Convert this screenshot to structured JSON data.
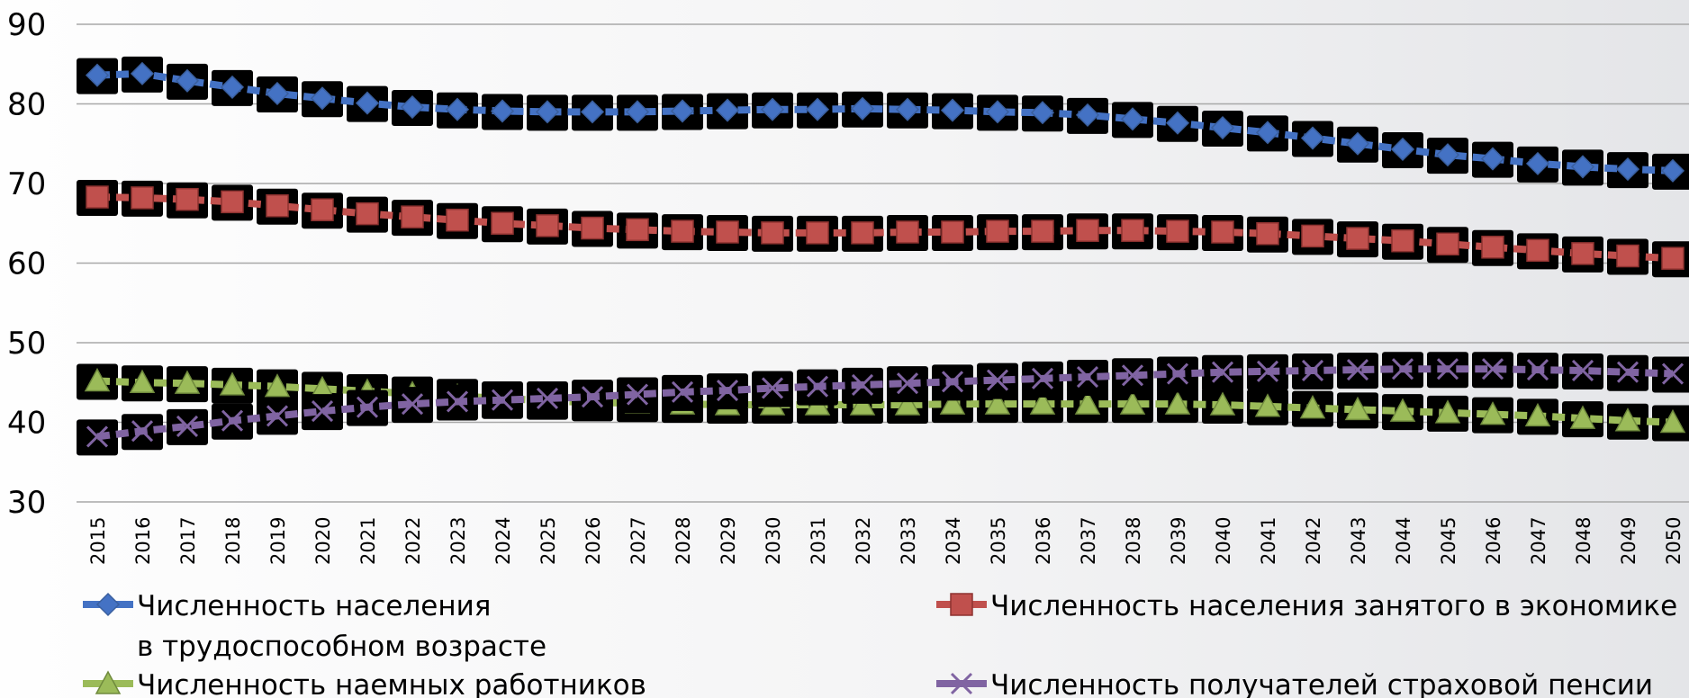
{
  "chart_data": {
    "type": "line",
    "title": "",
    "xlabel": "",
    "ylabel": "",
    "ylim": [
      30,
      90
    ],
    "yticks": [
      "30",
      "40",
      "50",
      "60",
      "70",
      "80",
      "90"
    ],
    "grid": true,
    "legend_placement": "bottom",
    "categories": [
      "2015",
      "2016",
      "2017",
      "2018",
      "2019",
      "2020",
      "2021",
      "2022",
      "2023",
      "2024",
      "2025",
      "2026",
      "2027",
      "2028",
      "2029",
      "2030",
      "2031",
      "2032",
      "2033",
      "2034",
      "2035",
      "2036",
      "2037",
      "2038",
      "2039",
      "2040",
      "2041",
      "2042",
      "2043",
      "2044",
      "2045",
      "2046",
      "2047",
      "2048",
      "2049",
      "2050"
    ],
    "series": [
      {
        "name": "Численность населения\nв трудоспособном возрасте",
        "color": "#4472c4",
        "marker": "diamond",
        "values": [
          83.6,
          83.8,
          82.9,
          82.1,
          81.3,
          80.7,
          80.1,
          79.6,
          79.3,
          79.1,
          79.0,
          79.0,
          79.0,
          79.1,
          79.2,
          79.3,
          79.3,
          79.4,
          79.3,
          79.2,
          79.0,
          78.9,
          78.6,
          78.1,
          77.6,
          77.0,
          76.4,
          75.7,
          75.0,
          74.3,
          73.6,
          73.1,
          72.5,
          72.1,
          71.8,
          71.6
        ]
      },
      {
        "name": "Численность населения занятого в экономике",
        "color": "#c0504d",
        "marker": "square",
        "values": [
          68.3,
          68.2,
          68.0,
          67.7,
          67.2,
          66.7,
          66.2,
          65.8,
          65.4,
          65.0,
          64.7,
          64.4,
          64.2,
          64.0,
          63.9,
          63.8,
          63.8,
          63.8,
          63.9,
          63.9,
          64.0,
          64.0,
          64.1,
          64.1,
          64.0,
          63.9,
          63.7,
          63.4,
          63.1,
          62.8,
          62.4,
          62.0,
          61.6,
          61.2,
          60.9,
          60.6
        ]
      },
      {
        "name": "Численность наемных работников",
        "color": "#9bbb59",
        "marker": "triangle",
        "values": [
          45.2,
          45.0,
          44.9,
          44.7,
          44.5,
          44.2,
          43.9,
          43.6,
          43.3,
          43.0,
          42.7,
          42.5,
          42.4,
          42.3,
          42.2,
          42.2,
          42.2,
          42.2,
          42.2,
          42.3,
          42.3,
          42.3,
          42.3,
          42.3,
          42.3,
          42.2,
          42.0,
          41.8,
          41.6,
          41.4,
          41.2,
          41.0,
          40.8,
          40.5,
          40.2,
          40.0
        ]
      },
      {
        "name": "Численность получателей страховой пенсии",
        "color": "#8064a2",
        "marker": "x",
        "values": [
          38.2,
          38.9,
          39.5,
          40.2,
          40.8,
          41.4,
          41.9,
          42.3,
          42.6,
          42.8,
          43.0,
          43.2,
          43.5,
          43.8,
          44.0,
          44.3,
          44.5,
          44.7,
          44.9,
          45.1,
          45.3,
          45.5,
          45.7,
          45.9,
          46.1,
          46.3,
          46.4,
          46.5,
          46.6,
          46.7,
          46.7,
          46.7,
          46.6,
          46.5,
          46.3,
          46.1
        ]
      }
    ]
  }
}
